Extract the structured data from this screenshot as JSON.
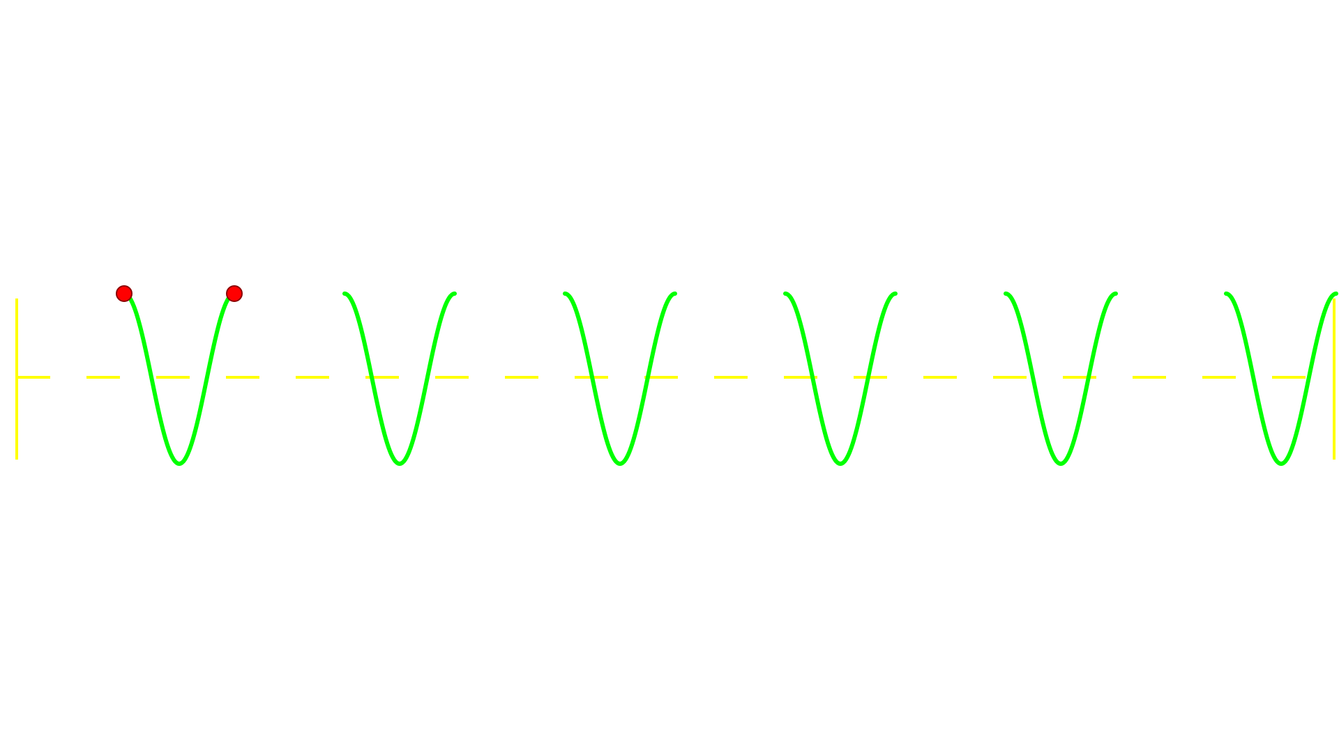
{
  "colors": {
    "background": "#ffffff",
    "wave": "#00ff00",
    "axis": "#ffff00",
    "point_fill": "#ff0000",
    "point_stroke": "#8b0000"
  },
  "diagram": {
    "segments": 6,
    "marked_points_on_first_segment": 2
  }
}
